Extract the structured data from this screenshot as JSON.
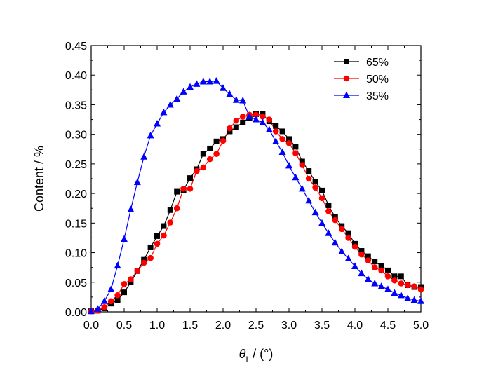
{
  "chart_data": {
    "type": "line",
    "xlabel_symbol": "θ",
    "xlabel_subscript": "L",
    "xlabel_unit": "/ (°)",
    "ylabel": "Content / %",
    "xlim": [
      0.0,
      5.0
    ],
    "ylim": [
      0.0,
      0.45
    ],
    "xticks": [
      "0.0",
      "0.5",
      "1.0",
      "1.5",
      "2.0",
      "2.5",
      "3.0",
      "3.5",
      "4.0",
      "4.5",
      "5.0"
    ],
    "yticks": [
      "0.00",
      "0.05",
      "0.10",
      "0.15",
      "0.20",
      "0.25",
      "0.30",
      "0.35",
      "0.40",
      "0.45"
    ],
    "grid": false,
    "legend_position": "top-right",
    "x": [
      0.0,
      0.1,
      0.2,
      0.3,
      0.4,
      0.5,
      0.6,
      0.7,
      0.8,
      0.9,
      1.0,
      1.1,
      1.2,
      1.3,
      1.4,
      1.5,
      1.6,
      1.7,
      1.8,
      1.9,
      2.0,
      2.1,
      2.2,
      2.3,
      2.4,
      2.5,
      2.6,
      2.7,
      2.8,
      2.9,
      3.0,
      3.1,
      3.2,
      3.3,
      3.4,
      3.5,
      3.6,
      3.7,
      3.8,
      3.9,
      4.0,
      4.1,
      4.2,
      4.3,
      4.4,
      4.5,
      4.6,
      4.7,
      4.8,
      4.9,
      5.0
    ],
    "series": [
      {
        "name": "65%",
        "color": "#000000",
        "marker": "square",
        "values": [
          0.001,
          0.002,
          0.006,
          0.014,
          0.02,
          0.033,
          0.05,
          0.069,
          0.088,
          0.109,
          0.128,
          0.145,
          0.172,
          0.203,
          0.206,
          0.226,
          0.241,
          0.267,
          0.276,
          0.288,
          0.292,
          0.305,
          0.312,
          0.32,
          0.328,
          0.334,
          0.334,
          0.322,
          0.314,
          0.305,
          0.292,
          0.279,
          0.254,
          0.238,
          0.22,
          0.205,
          0.18,
          0.16,
          0.145,
          0.133,
          0.115,
          0.103,
          0.094,
          0.085,
          0.078,
          0.07,
          0.06,
          0.06,
          0.045,
          0.042,
          0.042
        ]
      },
      {
        "name": "50%",
        "color": "#ff0000",
        "marker": "circle",
        "values": [
          0.001,
          0.002,
          0.008,
          0.018,
          0.028,
          0.047,
          0.055,
          0.069,
          0.083,
          0.091,
          0.115,
          0.129,
          0.151,
          0.175,
          0.208,
          0.208,
          0.238,
          0.244,
          0.258,
          0.267,
          0.289,
          0.31,
          0.323,
          0.33,
          0.333,
          0.333,
          0.33,
          0.325,
          0.305,
          0.292,
          0.285,
          0.268,
          0.248,
          0.225,
          0.21,
          0.192,
          0.17,
          0.155,
          0.14,
          0.125,
          0.11,
          0.097,
          0.087,
          0.075,
          0.07,
          0.06,
          0.053,
          0.048,
          0.045,
          0.043,
          0.038
        ]
      },
      {
        "name": "35%",
        "color": "#0000ff",
        "marker": "triangle",
        "values": [
          0.001,
          0.005,
          0.018,
          0.038,
          0.078,
          0.123,
          0.173,
          0.219,
          0.262,
          0.298,
          0.318,
          0.337,
          0.35,
          0.36,
          0.372,
          0.38,
          0.385,
          0.389,
          0.389,
          0.39,
          0.378,
          0.368,
          0.358,
          0.357,
          0.33,
          0.325,
          0.32,
          0.308,
          0.288,
          0.27,
          0.247,
          0.227,
          0.208,
          0.188,
          0.168,
          0.15,
          0.133,
          0.117,
          0.102,
          0.09,
          0.077,
          0.065,
          0.055,
          0.048,
          0.043,
          0.038,
          0.032,
          0.028,
          0.023,
          0.02,
          0.018
        ]
      }
    ]
  }
}
